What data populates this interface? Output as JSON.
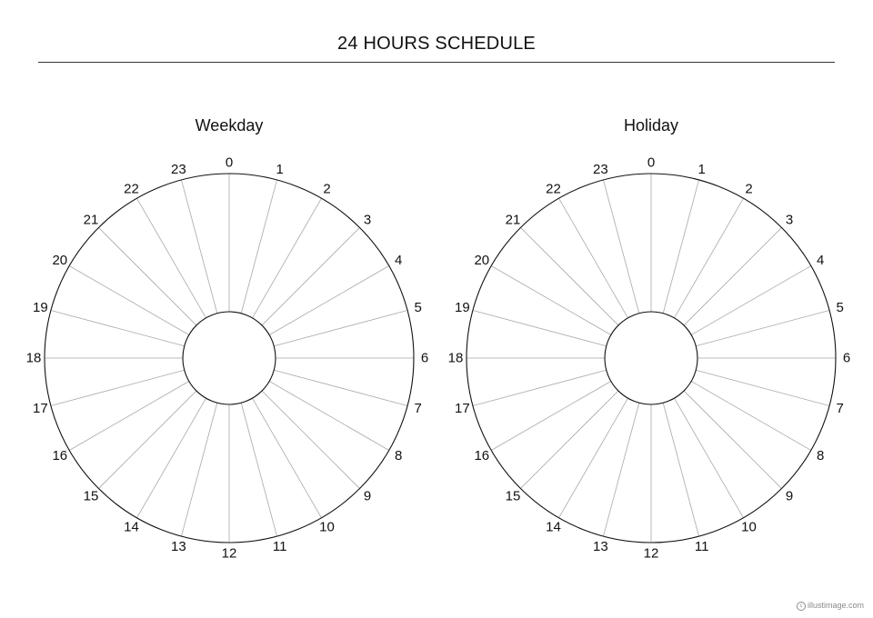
{
  "page": {
    "title": "24 HOURS SCHEDULE",
    "copyright": "illustimage.com",
    "copyright_mark": "c"
  },
  "clocks": [
    {
      "title": "Weekday",
      "hour_labels": [
        "0",
        "1",
        "2",
        "3",
        "4",
        "5",
        "6",
        "7",
        "8",
        "9",
        "10",
        "11",
        "12",
        "13",
        "14",
        "15",
        "16",
        "17",
        "18",
        "19",
        "20",
        "21",
        "22",
        "23"
      ]
    },
    {
      "title": "Holiday",
      "hour_labels": [
        "0",
        "1",
        "2",
        "3",
        "4",
        "5",
        "6",
        "7",
        "8",
        "9",
        "10",
        "11",
        "12",
        "13",
        "14",
        "15",
        "16",
        "17",
        "18",
        "19",
        "20",
        "21",
        "22",
        "23"
      ]
    }
  ]
}
